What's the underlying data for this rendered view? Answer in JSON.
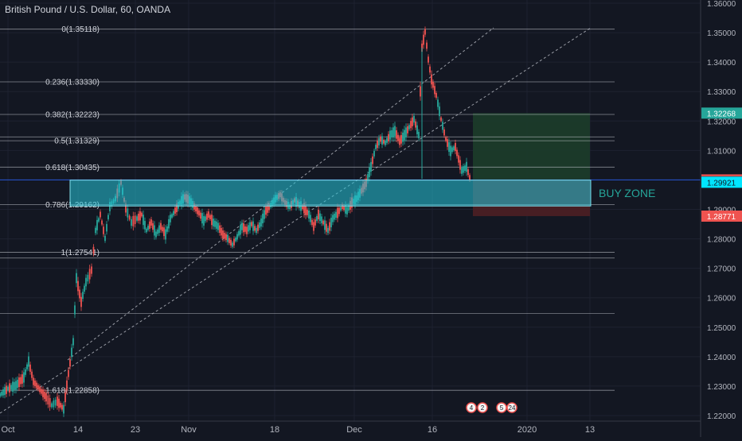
{
  "chart_title": "British Pound / U.S. Dollar, 60, OANDA",
  "colors": {
    "background": "#131722",
    "grid": "#1e2230",
    "up": "#26a69a",
    "down": "#ef5350",
    "axis_text": "#b2b5be",
    "fib_line": "#d1d4dc",
    "zone_fill": "#26c6da",
    "zone_border": "#80deea",
    "target_fill": "#1b3b2a",
    "stop_fill": "#4a1f24",
    "buy_zone_text": "#26a69a"
  },
  "price_axis": {
    "min": 1.22,
    "max": 1.36,
    "ticks": [
      "1.36000",
      "1.35000",
      "1.34000",
      "1.33000",
      "1.32000",
      "1.31000",
      "1.30000",
      "1.29000",
      "1.28000",
      "1.27000",
      "1.26000",
      "1.25000",
      "1.24000",
      "1.23000",
      "1.22000"
    ]
  },
  "time_axis": {
    "labels": [
      "Oct",
      "14",
      "23",
      "Nov",
      "18",
      "Dec",
      "16",
      "2020",
      "13"
    ]
  },
  "fib_levels": [
    {
      "label": "0(1.35118)",
      "price": 1.35118
    },
    {
      "label": "0.236(1.33330)",
      "price": 1.3333
    },
    {
      "label": "0.382(1.32223)",
      "price": 1.32223
    },
    {
      "label": "0.5(1.31329)",
      "price": 1.31329
    },
    {
      "label": "0.618(1.30435)",
      "price": 1.30435
    },
    {
      "label": "0.786(1.29162)",
      "price": 1.29162
    },
    {
      "label": "1(1.27541)",
      "price": 1.27541
    },
    {
      "label": "1.618(1.22858)",
      "price": 1.22858
    }
  ],
  "buy_zone": {
    "label": "BUY ZONE",
    "top": 1.29993,
    "bottom": 1.29115
  },
  "position": {
    "target": 1.32268,
    "entry": 1.29993,
    "stop": 1.28771
  },
  "price_tags": [
    {
      "text": "1.32268",
      "price": 1.32268,
      "bg": "#26a69a",
      "fg": "#ffffff"
    },
    {
      "text": "1.30000",
      "price": 1.3,
      "bg": "#ef5350",
      "fg": "#ffffff"
    },
    {
      "text": "1.29937",
      "price": 1.29937,
      "bg": "#363a45",
      "fg": "#ffffff"
    },
    {
      "text": "1.29921",
      "price": 1.29921,
      "bg": "#00e5ff",
      "fg": "#131722"
    },
    {
      "text": "1.28771",
      "price": 1.28771,
      "bg": "#ef5350",
      "fg": "#ffffff"
    }
  ],
  "event_markers": [
    "4",
    "2",
    "5",
    "24"
  ]
}
